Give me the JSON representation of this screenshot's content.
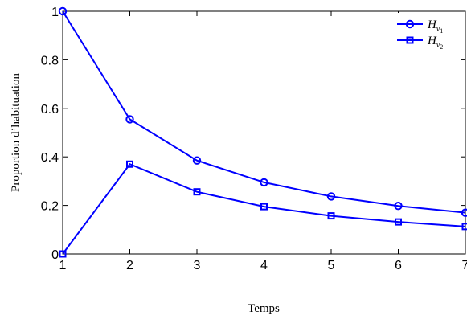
{
  "chart_data": {
    "type": "line",
    "xlabel": "Temps",
    "ylabel": "Proportion d’habituation",
    "xlim": [
      1,
      7
    ],
    "ylim": [
      0,
      1
    ],
    "x": [
      1,
      2,
      3,
      4,
      5,
      6,
      7
    ],
    "x_ticks": [
      "1",
      "2",
      "3",
      "4",
      "5",
      "6",
      "7"
    ],
    "y_ticks": [
      "0",
      "0.2",
      "0.4",
      "0.6",
      "0.8",
      "1"
    ],
    "grid": false,
    "legend_position": "top-right",
    "series": [
      {
        "name": "H_{v_1}",
        "legend": {
          "base": "H",
          "sub": "v",
          "subsub": "1"
        },
        "marker": "circle",
        "color": "#0000ff",
        "values": [
          1.0,
          0.555,
          0.385,
          0.295,
          0.237,
          0.198,
          0.17
        ]
      },
      {
        "name": "H_{v_2}",
        "legend": {
          "base": "H",
          "sub": "v",
          "subsub": "2"
        },
        "marker": "square",
        "color": "#0000ff",
        "values": [
          0.0,
          0.37,
          0.256,
          0.195,
          0.157,
          0.132,
          0.113
        ]
      }
    ]
  }
}
